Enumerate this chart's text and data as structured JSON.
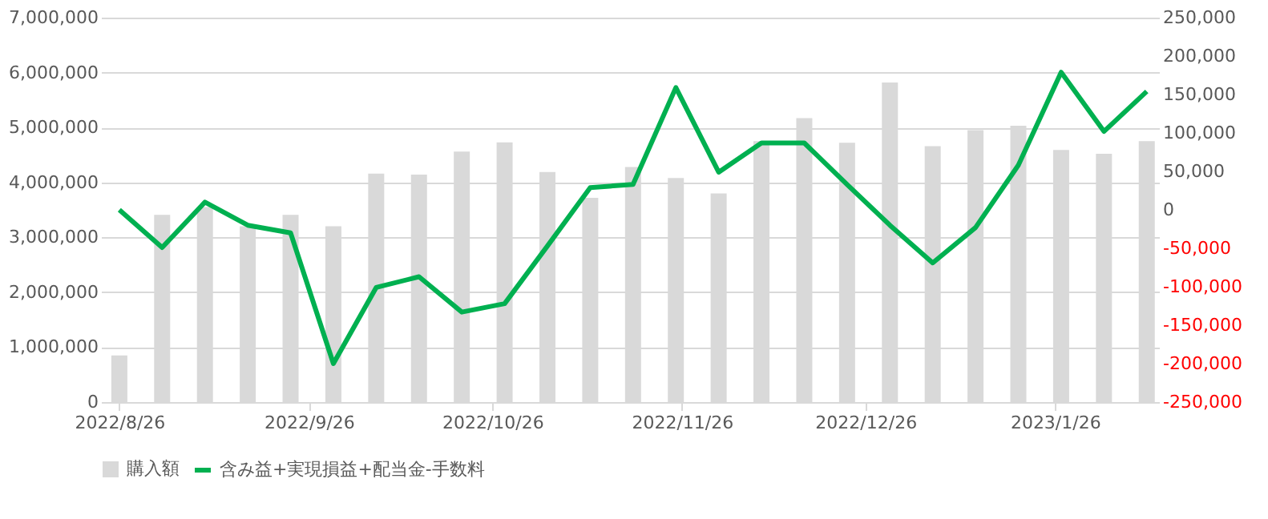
{
  "chart_data": {
    "type": "bar",
    "x": [
      "2022-08-26",
      "2022-09-02",
      "2022-09-09",
      "2022-09-16",
      "2022-09-23",
      "2022-09-30",
      "2022-10-07",
      "2022-10-14",
      "2022-10-21",
      "2022-10-28",
      "2022-11-04",
      "2022-11-11",
      "2022-11-18",
      "2022-11-25",
      "2022-12-02",
      "2022-12-09",
      "2022-12-16",
      "2022-12-23",
      "2022-12-30",
      "2023-01-06",
      "2023-01-13",
      "2023-01-20",
      "2023-01-27",
      "2023-02-03",
      "2023-02-10"
    ],
    "series": [
      {
        "name": "購入額",
        "color": "#d9d9d9",
        "values": [
          850000,
          3410000,
          3550000,
          3200000,
          3410000,
          3200000,
          4160000,
          4140000,
          4560000,
          4730000,
          4190000,
          3720000,
          4280000,
          4080000,
          3800000,
          4750000,
          5170000,
          4720000,
          5820000,
          4660000,
          4950000,
          5030000,
          4590000,
          4520000,
          4750000
        ]
      },
      {
        "name": "含み益+実現損益+配当金-手数料",
        "type": "line",
        "axis": "y2",
        "color": "#00b050",
        "values": [
          0,
          -49000,
          10000,
          -20000,
          -30000,
          -200000,
          -101000,
          -87000,
          -133000,
          -122000,
          -47000,
          29000,
          33000,
          159000,
          49000,
          87000,
          87000,
          33000,
          -20000,
          -69000,
          -23000,
          58000,
          179000,
          102000,
          154000
        ]
      }
    ],
    "xlim": [
      "2022-08-23",
      "2023-02-12"
    ],
    "xticks": [
      {
        "value": "2022-08-26",
        "label": "2022/8/26"
      },
      {
        "value": "2022-09-26",
        "label": "2022/9/26"
      },
      {
        "value": "2022-10-26",
        "label": "2022/10/26"
      },
      {
        "value": "2022-11-26",
        "label": "2022/11/26"
      },
      {
        "value": "2022-12-26",
        "label": "2022/12/26"
      },
      {
        "value": "2023-01-26",
        "label": "2023/1/26"
      }
    ],
    "ylim": [
      0,
      7000000
    ],
    "yticks": [
      {
        "value": 0,
        "label": "0"
      },
      {
        "value": 1000000,
        "label": "1,000,000"
      },
      {
        "value": 2000000,
        "label": "2,000,000"
      },
      {
        "value": 3000000,
        "label": "3,000,000"
      },
      {
        "value": 4000000,
        "label": "4,000,000"
      },
      {
        "value": 5000000,
        "label": "5,000,000"
      },
      {
        "value": 6000000,
        "label": "6,000,000"
      },
      {
        "value": 7000000,
        "label": "7,000,000"
      }
    ],
    "y2lim": [
      -250000,
      250000
    ],
    "y2ticks": [
      {
        "value": -250000,
        "label": "-250,000"
      },
      {
        "value": -200000,
        "label": "-200,000"
      },
      {
        "value": -150000,
        "label": "-150,000"
      },
      {
        "value": -100000,
        "label": "-100,000"
      },
      {
        "value": -50000,
        "label": "-50,000"
      },
      {
        "value": 0,
        "label": "0"
      },
      {
        "value": 50000,
        "label": "50,000"
      },
      {
        "value": 100000,
        "label": "100,000"
      },
      {
        "value": 150000,
        "label": "150,000"
      },
      {
        "value": 200000,
        "label": "200,000"
      },
      {
        "value": 250000,
        "label": "250,000"
      }
    ],
    "grid": "y",
    "legend": "bottom"
  }
}
